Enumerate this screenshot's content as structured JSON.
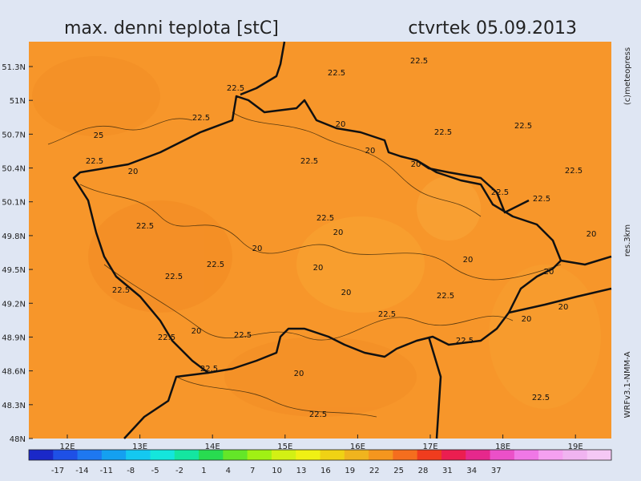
{
  "header": {
    "title": "max. denni teplota [stC]",
    "date": "ctvrtek 05.09.2013"
  },
  "side_labels": {
    "copyright": "(c)meteopress",
    "resolution": "res.3km",
    "model": "WRFv3.1-NMM-A"
  },
  "map": {
    "lat_labels": [
      "51.3N",
      "51N",
      "50.7N",
      "50.4N",
      "50.1N",
      "49.8N",
      "49.5N",
      "49.2N",
      "48.9N",
      "48.6N",
      "48.3N",
      "48N"
    ],
    "lon_labels": [
      "12E",
      "13E",
      "14E",
      "15E",
      "16E",
      "17E",
      "18E",
      "19E"
    ],
    "contour_labels": [
      "22.5",
      "22.5",
      "22.5",
      "22.5",
      "25",
      "20",
      "22.5",
      "22.5",
      "20",
      "22.5",
      "20",
      "22.5",
      "20",
      "22.5",
      "22.5",
      "22.5",
      "22.5",
      "22.5",
      "20",
      "20",
      "20",
      "22.5",
      "20",
      "22.5",
      "20",
      "20",
      "22.5",
      "20",
      "22.5",
      "20",
      "20",
      "22.5",
      "22.5",
      "20",
      "22.5",
      "22.5",
      "22.5",
      "20",
      "22.5",
      "22.5"
    ]
  },
  "colorbar": {
    "labels": [
      "-17",
      "-14",
      "-11",
      "-8",
      "-5",
      "-2",
      "1",
      "4",
      "7",
      "10",
      "13",
      "16",
      "19",
      "22",
      "25",
      "28",
      "31",
      "34",
      "37"
    ]
  }
}
